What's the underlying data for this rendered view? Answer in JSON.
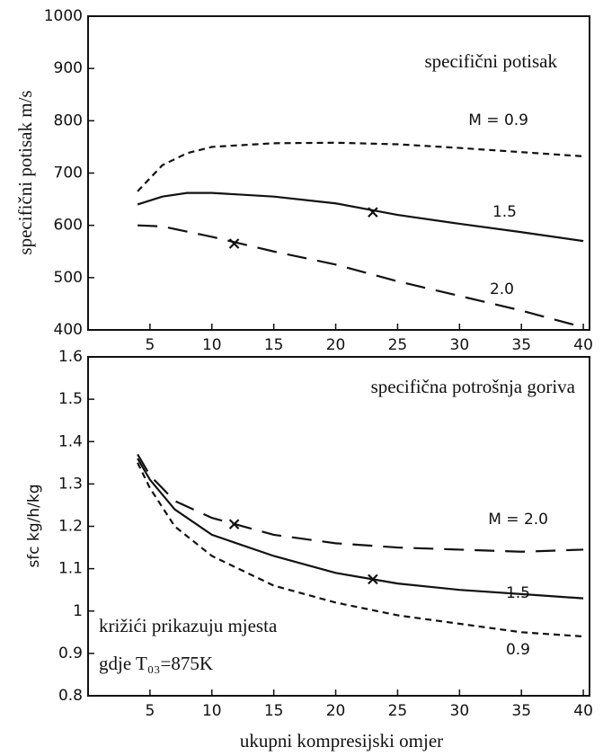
{
  "chart_data": [
    {
      "type": "line",
      "title": "specifični potisak",
      "ylabel": "specifični potisak  m/s",
      "x": [
        4,
        6,
        8,
        10,
        15,
        20,
        25,
        30,
        35,
        40
      ],
      "series": [
        {
          "name": "M = 0.9",
          "color": "#111111",
          "dash": "short",
          "values": [
            665,
            715,
            738,
            750,
            757,
            758,
            755,
            748,
            740,
            732
          ]
        },
        {
          "name": "1.5",
          "color": "#111111",
          "dash": "solid",
          "values": [
            640,
            655,
            662,
            662,
            655,
            642,
            620,
            603,
            587,
            570
          ]
        },
        {
          "name": "2.0",
          "color": "#111111",
          "dash": "long",
          "values": [
            600,
            598,
            588,
            578,
            550,
            525,
            493,
            465,
            437,
            405
          ]
        }
      ],
      "markers": {
        "x": [
          23,
          11.8
        ],
        "y": [
          625,
          565
        ]
      },
      "xlim": [
        0,
        40.5
      ],
      "xticks": [
        5,
        10,
        15,
        20,
        25,
        30,
        35,
        40
      ],
      "ylim": [
        400,
        1000
      ],
      "yticks": [
        400,
        500,
        600,
        700,
        800,
        900,
        1000
      ]
    },
    {
      "type": "line",
      "title": "specifična potrošnja goriva",
      "ylabel": "sfc kg/h/kg",
      "xlabel": "ukupni kompresijski omjer",
      "annotations": [
        "križići prikazuju mjesta",
        "gdje T₀₃=875K"
      ],
      "x": [
        4,
        5,
        7,
        10,
        15,
        20,
        25,
        30,
        35,
        40
      ],
      "series": [
        {
          "name": "M = 2.0",
          "color": "#111111",
          "dash": "long",
          "values": [
            1.37,
            1.32,
            1.26,
            1.22,
            1.18,
            1.16,
            1.15,
            1.145,
            1.14,
            1.145
          ]
        },
        {
          "name": "1.5",
          "color": "#111111",
          "dash": "solid",
          "values": [
            1.36,
            1.31,
            1.24,
            1.18,
            1.13,
            1.09,
            1.065,
            1.05,
            1.04,
            1.03
          ]
        },
        {
          "name": "0.9",
          "color": "#111111",
          "dash": "short",
          "values": [
            1.35,
            1.29,
            1.2,
            1.13,
            1.06,
            1.02,
            0.99,
            0.97,
            0.95,
            0.94
          ]
        }
      ],
      "markers": {
        "x": [
          11.8,
          23
        ],
        "y": [
          1.205,
          1.075
        ]
      },
      "xlim": [
        0,
        40.5
      ],
      "xticks": [
        5,
        10,
        15,
        20,
        25,
        30,
        35,
        40
      ],
      "ylim": [
        0.8,
        1.6
      ],
      "yticks": [
        0.8,
        0.9,
        1,
        1.1,
        1.2,
        1.3,
        1.4,
        1.5,
        1.6
      ]
    }
  ]
}
